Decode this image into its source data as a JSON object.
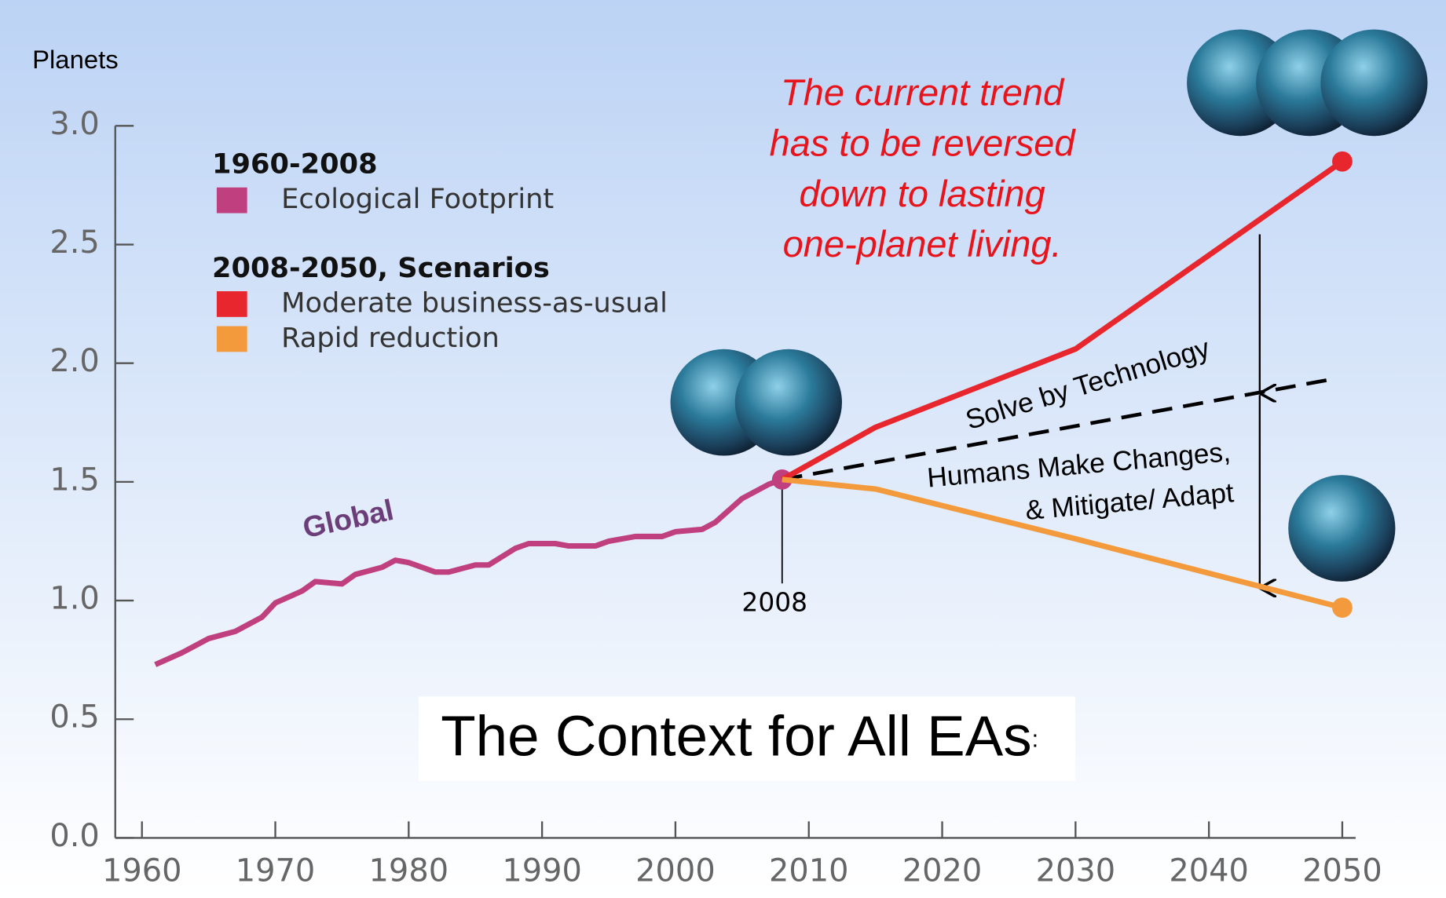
{
  "chart_data": {
    "type": "line",
    "title": "The Context for All EAs",
    "title_suffix": ":",
    "ylabel": "Planets",
    "xlim": [
      1958,
      2051
    ],
    "xticks": [
      1960,
      1970,
      1980,
      1990,
      2000,
      2010,
      2020,
      2030,
      2040,
      2050
    ],
    "ylim": [
      0,
      3
    ],
    "yticks": [
      {
        "value": 0,
        "label": "0.0"
      },
      0.5,
      {
        "value": 1,
        "label": "1.0"
      },
      1.5,
      {
        "value": 2,
        "label": "2.0"
      },
      2.5,
      {
        "value": 3,
        "label": "3.0"
      }
    ],
    "legend_groups": [
      "1960-2008",
      "2008-2050, Scenarios"
    ],
    "series": [
      {
        "name": "Ecological Footprint",
        "color": "#c0407f",
        "group": 0,
        "x": [
          1961,
          1963,
          1965,
          1967,
          1969,
          1970,
          1972,
          1973,
          1975,
          1976,
          1978,
          1979,
          1980,
          1982,
          1983,
          1985,
          1986,
          1988,
          1989,
          1991,
          1992,
          1994,
          1995,
          1997,
          1999,
          2000,
          2002,
          2003,
          2005,
          2007,
          2008
        ],
        "values": [
          0.73,
          0.78,
          0.84,
          0.87,
          0.93,
          0.99,
          1.04,
          1.08,
          1.07,
          1.11,
          1.14,
          1.17,
          1.16,
          1.12,
          1.12,
          1.15,
          1.15,
          1.22,
          1.24,
          1.24,
          1.23,
          1.23,
          1.25,
          1.27,
          1.27,
          1.29,
          1.3,
          1.33,
          1.43,
          1.49,
          1.51
        ]
      },
      {
        "name": "Moderate business-as-usual",
        "color": "#e8262e",
        "group": 1,
        "x": [
          2008,
          2015,
          2030,
          2050
        ],
        "values": [
          1.51,
          1.73,
          2.06,
          2.85
        ]
      },
      {
        "name": "Rapid reduction",
        "color": "#f39a3c",
        "group": 1,
        "x": [
          2008,
          2015,
          2030,
          2050
        ],
        "values": [
          1.51,
          1.47,
          1.26,
          0.97
        ]
      }
    ],
    "trend_line": {
      "label": "Solve by Technology",
      "x": [
        2008,
        2049
      ],
      "values": [
        1.51,
        1.93
      ]
    },
    "series_label": "Global",
    "marker_label": "2008",
    "annotation": [
      "The  current trend",
      "has  to be reversed",
      "down to lasting",
      "one-planet living."
    ],
    "note": [
      "Humans Make Changes,",
      "& Mitigate/ Adapt"
    ]
  }
}
